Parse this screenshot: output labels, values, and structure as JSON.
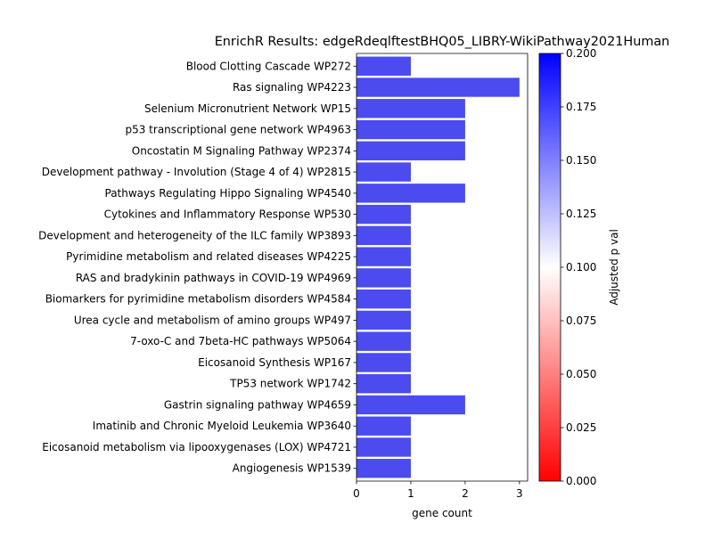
{
  "chart_data": {
    "type": "bar",
    "orientation": "horizontal",
    "title": "EnrichR Results: edgeRdeqlftestBHQ05_LIBRY-WikiPathway2021Human",
    "xlabel": "gene count",
    "ylabel": "",
    "xlim": [
      0,
      3.15
    ],
    "xticks": [
      0,
      1,
      2,
      3
    ],
    "categories": [
      "Blood Clotting Cascade WP272",
      "Ras signaling WP4223",
      "Selenium Micronutrient Network WP15",
      "p53 transcriptional gene network WP4963",
      "Oncostatin M Signaling Pathway WP2374",
      "Development pathway - Involution (Stage 4 of 4) WP2815",
      "Pathways Regulating Hippo Signaling WP4540",
      "Cytokines and Inflammatory Response WP530",
      "Development and heterogeneity of the ILC family WP3893",
      "Pyrimidine metabolism and related diseases WP4225",
      "RAS and bradykinin pathways in COVID-19 WP4969",
      "Biomarkers for pyrimidine metabolism disorders WP4584",
      "Urea cycle and metabolism of amino groups WP497",
      "7-oxo-C and 7beta-HC pathways WP5064",
      "Eicosanoid Synthesis WP167",
      "TP53 network WP1742",
      "Gastrin signaling pathway WP4659",
      "Imatinib and Chronic Myeloid Leukemia WP3640",
      "Eicosanoid metabolism via lipooxygenases (LOX) WP4721",
      "Angiogenesis WP1539"
    ],
    "values": [
      1,
      3,
      2,
      2,
      2,
      1,
      2,
      1,
      1,
      1,
      1,
      1,
      1,
      1,
      1,
      1,
      2,
      1,
      1,
      1
    ],
    "bar_color": "#4b4bef",
    "colorbar": {
      "label": "Adjusted p val",
      "range": [
        0.0,
        0.2
      ],
      "ticks": [
        "0.000",
        "0.025",
        "0.050",
        "0.075",
        "0.100",
        "0.125",
        "0.150",
        "0.175",
        "0.200"
      ],
      "colormap": [
        "#ff0000",
        "#ffffff",
        "#0000ff"
      ]
    },
    "grid": false,
    "legend": "none"
  }
}
